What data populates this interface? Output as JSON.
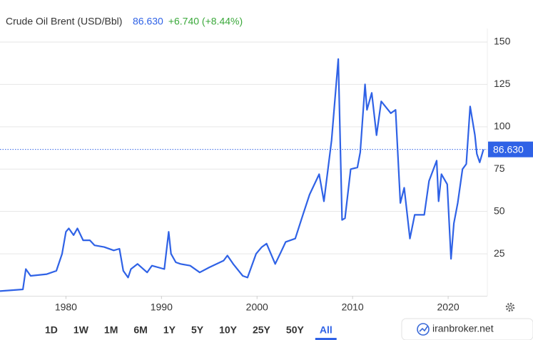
{
  "header": {
    "name": "Crude Oil Brent (USD/Bbl)",
    "price": "86.630",
    "change": "+6.740 (+8.44%)"
  },
  "chart_data": {
    "type": "line",
    "x": [
      1973.1,
      1975.5,
      1975.8,
      1976.3,
      1978,
      1979,
      1979.6,
      1980,
      1980.3,
      1980.8,
      1981.2,
      1981.8,
      1982.5,
      1983,
      1984,
      1985,
      1985.6,
      1986,
      1986.5,
      1986.8,
      1987.5,
      1988.5,
      1989,
      1990.3,
      1990.75,
      1991,
      1991.5,
      1992,
      1993,
      1994,
      1995,
      1996.5,
      1996.9,
      1997.5,
      1998.5,
      1999,
      1999.9,
      2000.5,
      2001,
      2001.9,
      2002.5,
      2003,
      2004,
      2004.8,
      2005.5,
      2006.5,
      2007,
      2007.8,
      2008.5,
      2008.9,
      2009.2,
      2009.8,
      2010.5,
      2010.8,
      2011.3,
      2011.5,
      2012,
      2012.5,
      2013,
      2014,
      2014.5,
      2015,
      2015.4,
      2016,
      2016.5,
      2017.5,
      2018,
      2018.8,
      2019,
      2019.3,
      2019.9,
      2020.3,
      2020.6,
      2021,
      2021.5,
      2021.9,
      2022.3,
      2022.8,
      2023,
      2023.3,
      2023.7
    ],
    "series": [
      {
        "name": "Crude Oil Brent",
        "color": "#2f62e6",
        "values": [
          3,
          4,
          16,
          12,
          13,
          15,
          25,
          38,
          40,
          36,
          40,
          33,
          33,
          30,
          29,
          27,
          28,
          15,
          11,
          16,
          19,
          14,
          18,
          16,
          38,
          25,
          20,
          19,
          18,
          14,
          17,
          21,
          24,
          19,
          12,
          11,
          25,
          29,
          31,
          19,
          26,
          32,
          34,
          48,
          60,
          72,
          56,
          92,
          140,
          45,
          46,
          75,
          76,
          85,
          125,
          110,
          120,
          95,
          115,
          108,
          110,
          55,
          64,
          34,
          48,
          48,
          68,
          80,
          56,
          72,
          66,
          22,
          43,
          55,
          75,
          78,
          112,
          95,
          84,
          79,
          86.63
        ]
      }
    ],
    "xlim": [
      1973.1,
      2024.1
    ],
    "ylim": [
      0,
      158
    ],
    "xticks": [
      1980,
      1990,
      2000,
      2010,
      2020
    ],
    "yticks": [
      25,
      50,
      75,
      100,
      125,
      150
    ],
    "grid": true
  },
  "ranges": [
    "1D",
    "1W",
    "1M",
    "6M",
    "1Y",
    "5Y",
    "10Y",
    "25Y",
    "50Y",
    "All"
  ],
  "selected_range": 9,
  "watermark": "iranbroker.net"
}
